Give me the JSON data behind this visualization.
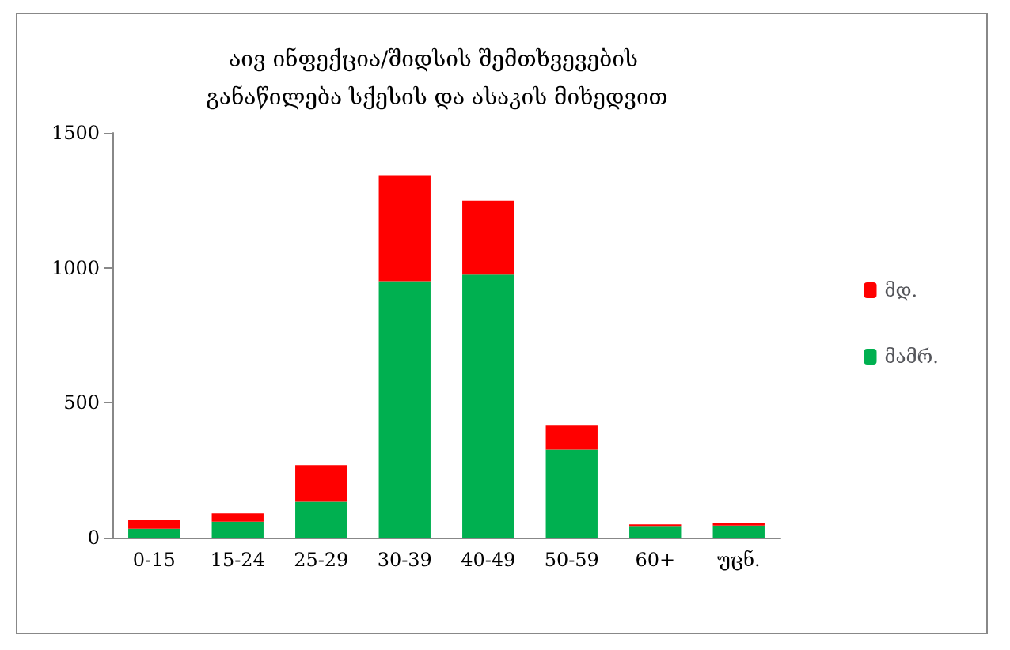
{
  "chart_data": {
    "type": "bar",
    "stacked": true,
    "title": "აივ ინფექცია/შიდსის შემთხვევების განაწილება სქესის და ასაკის მიხედვით",
    "categories": [
      "0-15",
      "15-24",
      "25-29",
      "30-39",
      "40-49",
      "50-59",
      "60+",
      "უცნ."
    ],
    "series": [
      {
        "name": "მამრ.",
        "color": "#00b050",
        "values": [
          33,
          59,
          133,
          951,
          975,
          327,
          43,
          45
        ]
      },
      {
        "name": "მდ.",
        "color": "#ff0000",
        "values": [
          32,
          31,
          136,
          392,
          274,
          88,
          6,
          8
        ]
      }
    ],
    "ylim": [
      0,
      1500
    ],
    "yticks": [
      0,
      500,
      1000,
      1500
    ],
    "grid": false,
    "legend": "right"
  }
}
